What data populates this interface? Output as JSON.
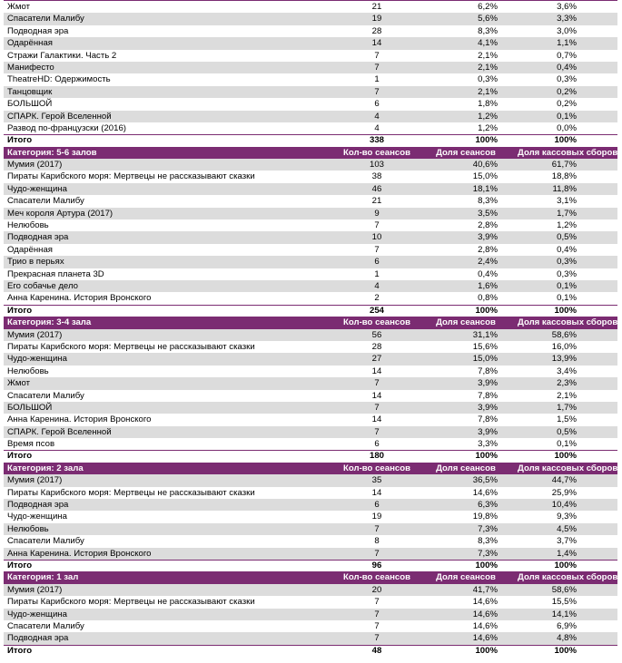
{
  "sections": [
    {
      "rows": [
        [
          "Жмот",
          "21",
          "6,2%",
          "3,6%"
        ],
        [
          "Спасатели Малибу",
          "19",
          "5,6%",
          "3,3%"
        ],
        [
          "Подводная эра",
          "28",
          "8,3%",
          "3,0%"
        ],
        [
          "Одарённая",
          "14",
          "4,1%",
          "1,1%"
        ],
        [
          "Стражи Галактики. Часть 2",
          "7",
          "2,1%",
          "0,7%"
        ],
        [
          "Манифесто",
          "7",
          "2,1%",
          "0,4%"
        ],
        [
          "TheatreHD: Одержимость",
          "1",
          "0,3%",
          "0,3%"
        ],
        [
          "Танцовщик",
          "7",
          "2,1%",
          "0,2%"
        ],
        [
          "БОЛЬШОЙ",
          "6",
          "1,8%",
          "0,2%"
        ],
        [
          "СПАРК. Герой Вселенной",
          "4",
          "1,2%",
          "0,1%"
        ],
        [
          "Развод по-французски (2016)",
          "4",
          "1,2%",
          "0,0%"
        ]
      ],
      "total": [
        "Итого",
        "338",
        "100%",
        "100%"
      ]
    },
    {
      "header": [
        "Категория: 5-6 залов",
        "Кол-во сеансов",
        "Доля сеансов",
        "Доля кассовых сборов"
      ],
      "rows": [
        [
          "Мумия (2017)",
          "103",
          "40,6%",
          "61,7%"
        ],
        [
          "Пираты Карибского моря: Мертвецы не рассказывают сказки",
          "38",
          "15,0%",
          "18,8%"
        ],
        [
          "Чудо-женщина",
          "46",
          "18,1%",
          "11,8%"
        ],
        [
          "Спасатели Малибу",
          "21",
          "8,3%",
          "3,1%"
        ],
        [
          "Меч короля Артура (2017)",
          "9",
          "3,5%",
          "1,7%"
        ],
        [
          "Нелюбовь",
          "7",
          "2,8%",
          "1,2%"
        ],
        [
          "Подводная эра",
          "10",
          "3,9%",
          "0,5%"
        ],
        [
          "Одарённая",
          "7",
          "2,8%",
          "0,4%"
        ],
        [
          "Трио в перьях",
          "6",
          "2,4%",
          "0,3%"
        ],
        [
          "Прекрасная планета 3D",
          "1",
          "0,4%",
          "0,3%"
        ],
        [
          "Его собачье дело",
          "4",
          "1,6%",
          "0,1%"
        ],
        [
          "Анна Каренина. История Вронского",
          "2",
          "0,8%",
          "0,1%"
        ]
      ],
      "total": [
        "Итого",
        "254",
        "100%",
        "100%"
      ]
    },
    {
      "header": [
        "Категория: 3-4 зала",
        "Кол-во сеансов",
        "Доля сеансов",
        "Доля кассовых сборов"
      ],
      "rows": [
        [
          "Мумия (2017)",
          "56",
          "31,1%",
          "58,6%"
        ],
        [
          "Пираты Карибского моря: Мертвецы не рассказывают сказки",
          "28",
          "15,6%",
          "16,0%"
        ],
        [
          "Чудо-женщина",
          "27",
          "15,0%",
          "13,9%"
        ],
        [
          "Нелюбовь",
          "14",
          "7,8%",
          "3,4%"
        ],
        [
          "Жмот",
          "7",
          "3,9%",
          "2,3%"
        ],
        [
          "Спасатели Малибу",
          "14",
          "7,8%",
          "2,1%"
        ],
        [
          "БОЛЬШОЙ",
          "7",
          "3,9%",
          "1,7%"
        ],
        [
          "Анна Каренина. История Вронского",
          "14",
          "7,8%",
          "1,5%"
        ],
        [
          "СПАРК. Герой Вселенной",
          "7",
          "3,9%",
          "0,5%"
        ],
        [
          "Время псов",
          "6",
          "3,3%",
          "0,1%"
        ]
      ],
      "total": [
        "Итого",
        "180",
        "100%",
        "100%"
      ]
    },
    {
      "header": [
        "Категория: 2 зала",
        "Кол-во сеансов",
        "Доля сеансов",
        "Доля кассовых сборов"
      ],
      "rows": [
        [
          "Мумия (2017)",
          "35",
          "36,5%",
          "44,7%"
        ],
        [
          "Пираты Карибского моря: Мертвецы не рассказывают сказки",
          "14",
          "14,6%",
          "25,9%"
        ],
        [
          "Подводная эра",
          "6",
          "6,3%",
          "10,4%"
        ],
        [
          "Чудо-женщина",
          "19",
          "19,8%",
          "9,3%"
        ],
        [
          "Нелюбовь",
          "7",
          "7,3%",
          "4,5%"
        ],
        [
          "Спасатели Малибу",
          "8",
          "8,3%",
          "3,7%"
        ],
        [
          "Анна Каренина. История Вронского",
          "7",
          "7,3%",
          "1,4%"
        ]
      ],
      "total": [
        "Итого",
        "96",
        "100%",
        "100%"
      ]
    },
    {
      "header": [
        "Категория: 1 зал",
        "Кол-во сеансов",
        "Доля сеансов",
        "Доля кассовых сборов"
      ],
      "rows": [
        [
          "Мумия (2017)",
          "20",
          "41,7%",
          "58,6%"
        ],
        [
          "Пираты Карибского моря: Мертвецы не рассказывают сказки",
          "7",
          "14,6%",
          "15,5%"
        ],
        [
          "Чудо-женщина",
          "7",
          "14,6%",
          "14,1%"
        ],
        [
          "Спасатели Малибу",
          "7",
          "14,6%",
          "6,9%"
        ],
        [
          "Подводная эра",
          "7",
          "14,6%",
          "4,8%"
        ]
      ],
      "total": [
        "Итого",
        "48",
        "100%",
        "100%"
      ]
    }
  ]
}
